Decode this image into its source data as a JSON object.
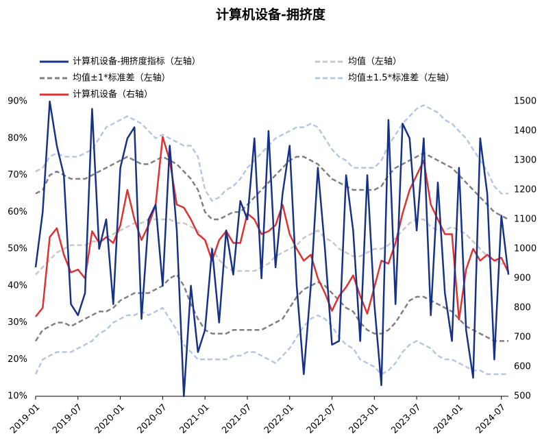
{
  "chart_data": {
    "type": "line",
    "title": "计算机设备-拥挤度",
    "categories": [
      "2019-01",
      null,
      null,
      null,
      null,
      null,
      "2019-07",
      null,
      null,
      null,
      null,
      null,
      "2020-01",
      null,
      null,
      null,
      null,
      null,
      "2020-07",
      null,
      null,
      null,
      null,
      null,
      "2021-01",
      null,
      null,
      null,
      null,
      null,
      "2021-07",
      null,
      null,
      null,
      null,
      null,
      "2022-01",
      null,
      null,
      null,
      null,
      null,
      "2022-07",
      null,
      null,
      null,
      null,
      null,
      "2023-01",
      null,
      null,
      null,
      null,
      null,
      "2023-07",
      null,
      null,
      null,
      null,
      null,
      "2024-01",
      null,
      null,
      null,
      null,
      null,
      "2024-07",
      null
    ],
    "ylim": [
      10,
      90
    ],
    "yticks": [
      {
        "value": 10,
        "label": "10%"
      },
      {
        "value": 20,
        "label": "20%"
      },
      {
        "value": 30,
        "label": "30%"
      },
      {
        "value": 40,
        "label": "40%"
      },
      {
        "value": 50,
        "label": "50%"
      },
      {
        "value": 60,
        "label": "60%"
      },
      {
        "value": 70,
        "label": "70%"
      },
      {
        "value": 80,
        "label": "80%"
      },
      {
        "value": 90,
        "label": "90%"
      }
    ],
    "y2lim": [
      500,
      1500
    ],
    "y2ticks": [
      500,
      600,
      700,
      800,
      900,
      1000,
      1100,
      1200,
      1300,
      1400,
      1500
    ],
    "grid": false,
    "series": [
      {
        "name": "计算机设备-拥挤度指标（左轴）",
        "color": "#15318a",
        "dashed": false,
        "values": [
          45,
          60,
          90,
          78,
          70,
          35,
          32,
          38,
          88,
          50,
          58,
          35,
          72,
          80,
          83,
          31,
          58,
          62,
          40,
          78,
          55,
          10,
          40,
          22,
          28,
          50,
          30,
          55,
          43,
          63,
          58,
          80,
          42,
          82,
          45,
          65,
          78,
          40,
          16,
          40,
          72,
          50,
          24,
          25,
          70,
          55,
          25,
          70,
          35,
          13,
          85,
          35,
          84,
          80,
          55,
          80,
          32,
          68,
          38,
          25,
          72,
          28,
          15,
          80,
          65,
          20,
          59,
          43
        ]
      },
      {
        "name": "均值（左轴）",
        "color": "#c8c8c8",
        "dashed": true,
        "values": [
          43,
          45,
          47,
          49,
          50,
          51,
          51,
          51,
          52,
          52,
          53,
          54,
          55,
          56,
          57,
          57,
          58,
          58,
          58,
          58,
          57,
          57,
          56,
          55,
          52,
          50,
          47,
          45,
          44,
          44,
          44,
          44,
          45,
          46,
          48,
          49,
          50,
          51,
          53,
          54,
          55,
          53,
          52,
          50,
          49,
          48,
          48,
          49,
          50,
          50,
          51,
          53,
          55,
          57,
          58,
          58,
          56,
          55,
          55,
          56,
          55,
          54,
          52,
          50,
          48,
          47,
          46,
          46
        ]
      },
      {
        "name": "均值±1*标准差（左轴）",
        "color": "#808080",
        "dashed": true,
        "values": [
          65,
          66,
          70,
          71,
          70,
          69,
          69,
          69,
          70,
          71,
          72,
          73,
          74,
          75,
          74,
          73,
          73,
          74,
          75,
          74,
          73,
          71,
          69,
          66,
          60,
          58,
          58,
          59,
          60,
          60,
          62,
          64,
          66,
          68,
          70,
          72,
          74,
          75,
          75,
          74,
          73,
          71,
          69,
          68,
          67,
          66,
          66,
          66,
          66,
          67,
          70,
          72,
          73,
          74,
          75,
          76,
          75,
          74,
          73,
          72,
          70,
          68,
          66,
          64,
          62,
          60,
          59,
          58
        ]
      },
      {
        "name": "均值±1.5*标准差（左轴）",
        "color": "#b4c8e6",
        "dashed": true,
        "values": [
          71,
          72,
          75,
          76,
          75,
          75,
          75,
          76,
          77,
          80,
          83,
          84,
          85,
          86,
          85,
          84,
          82,
          80,
          81,
          80,
          79,
          78,
          78,
          75,
          66,
          63,
          64,
          66,
          67,
          69,
          72,
          74,
          76,
          78,
          80,
          81,
          82,
          83,
          83,
          84,
          83,
          80,
          77,
          75,
          74,
          72,
          72,
          72,
          72,
          74,
          78,
          81,
          84,
          86,
          88,
          89,
          88,
          87,
          85,
          84,
          82,
          80,
          77,
          74,
          71,
          67,
          65,
          65
        ]
      },
      {
        "name": "计算机设备（右轴）",
        "color": "#e03030",
        "dashed": false,
        "axis": "y2",
        "values": [
          770,
          800,
          1040,
          1070,
          980,
          920,
          930,
          900,
          1060,
          1020,
          1040,
          1020,
          1080,
          1200,
          1100,
          1030,
          1080,
          1150,
          1380,
          1300,
          1150,
          1140,
          1100,
          1050,
          1030,
          960,
          1030,
          1060,
          1020,
          1020,
          1120,
          1100,
          1050,
          1060,
          1080,
          1150,
          1050,
          1000,
          960,
          980,
          900,
          850,
          790,
          840,
          870,
          910,
          840,
          780,
          870,
          960,
          950,
          1020,
          1120,
          1200,
          1250,
          1300,
          1150,
          1100,
          1050,
          1050,
          760,
          930,
          1000,
          960,
          980,
          960,
          970,
          920
        ]
      }
    ],
    "bands": [
      {
        "color": "#808080",
        "values": [
          25,
          28,
          29,
          30,
          30,
          29,
          30,
          31,
          32,
          33,
          33,
          34,
          36,
          37,
          38,
          38,
          38,
          39,
          40,
          42,
          43,
          40,
          35,
          31,
          28,
          27,
          27,
          27,
          28,
          28,
          28,
          28,
          28,
          29,
          30,
          31,
          34,
          37,
          39,
          40,
          41,
          40,
          38,
          36,
          34,
          33,
          30,
          28,
          27,
          27,
          28,
          30,
          33,
          36,
          37,
          37,
          36,
          35,
          34,
          33,
          31,
          29,
          28,
          27,
          26,
          25,
          25,
          25
        ]
      },
      {
        "color": "#b4c8e6",
        "values": [
          16,
          20,
          21,
          22,
          22,
          22,
          23,
          24,
          25,
          27,
          28,
          30,
          31,
          32,
          32,
          33,
          32,
          33,
          34,
          31,
          28,
          24,
          22,
          20,
          20,
          20,
          20,
          20,
          21,
          21,
          22,
          22,
          21,
          20,
          19,
          21,
          23,
          26,
          29,
          31,
          32,
          31,
          29,
          26,
          24,
          23,
          20,
          19,
          18,
          16,
          17,
          19,
          22,
          24,
          25,
          24,
          23,
          21,
          20,
          20,
          19,
          18,
          17,
          17,
          16,
          16,
          16,
          16
        ]
      }
    ]
  }
}
